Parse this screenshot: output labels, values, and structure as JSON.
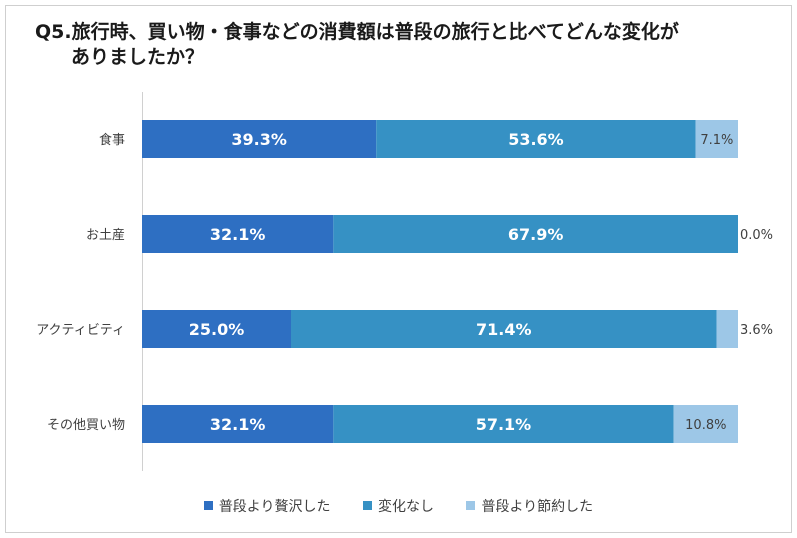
{
  "title": {
    "line1": "Q5.旅行時、買い物・食事などの消費額は普段の旅行と比べてどんな変化が",
    "line2": "ありましたか？"
  },
  "colors": {
    "series1": "#2E6FC2",
    "series2": "#3691C4",
    "series3": "#9DC7E7"
  },
  "chart_data": {
    "type": "bar",
    "orientation": "horizontal",
    "stacked": "percent",
    "categories": [
      "食事",
      "お土産",
      "アクティビティ",
      "その他買い物"
    ],
    "series": [
      {
        "name": "普段より贅沢した",
        "values": [
          39.3,
          32.1,
          25.0,
          32.1
        ],
        "labels": [
          "39.3%",
          "32.1%",
          "25.0%",
          "32.1%"
        ]
      },
      {
        "name": "変化なし",
        "values": [
          53.6,
          67.9,
          71.4,
          57.1
        ],
        "labels": [
          "53.6%",
          "67.9%",
          "71.4%",
          "57.1%"
        ]
      },
      {
        "name": "普段より節約した",
        "values": [
          7.1,
          0.0,
          3.6,
          10.8
        ],
        "labels": [
          "7.1%",
          "0.0%",
          "3.6%",
          "10.8%"
        ]
      }
    ],
    "xlim": [
      0,
      100
    ],
    "grid": false,
    "legend_position": "bottom"
  }
}
